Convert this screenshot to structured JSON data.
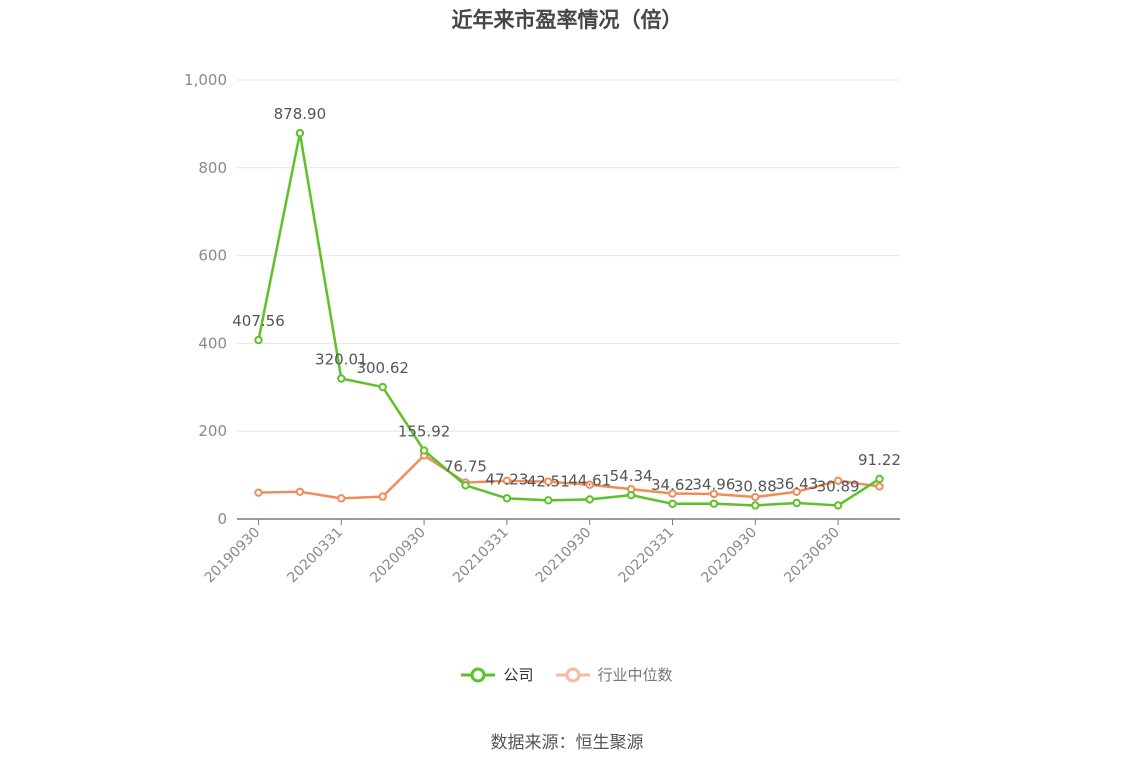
{
  "chart_data": {
    "type": "line",
    "title": "近年来市盈率情况（倍）",
    "xlabel": "",
    "ylabel": "",
    "ylim": [
      0,
      1000
    ],
    "y_ticks": [
      "0",
      "200",
      "400",
      "600",
      "800",
      "1,000"
    ],
    "y_tick_values": [
      0,
      200,
      400,
      600,
      800,
      1000
    ],
    "x": [
      "20190930",
      "20191231",
      "20200331",
      "20200630",
      "20200930",
      "20201231",
      "20210331",
      "20210630",
      "20210930",
      "20211231",
      "20220331",
      "20220630",
      "20220930",
      "20221231",
      "20230630",
      "20230930"
    ],
    "x_tick_labels": [
      "20190930",
      "20200331",
      "20200930",
      "20210331",
      "20210930",
      "20220331",
      "20220930",
      "20230630"
    ],
    "x_tick_indices": [
      0,
      2,
      4,
      6,
      8,
      10,
      12,
      14
    ],
    "grid": true,
    "legend_position": "bottom",
    "series": [
      {
        "name": "公司",
        "color": "#5cc12b",
        "values": [
          407.56,
          878.9,
          320.01,
          300.62,
          155.92,
          76.75,
          47.23,
          42.51,
          44.61,
          54.34,
          34.62,
          34.96,
          30.88,
          36.43,
          30.89,
          91.22
        ],
        "labels": [
          "407.56",
          "878.90",
          "320.01",
          "300.62",
          "155.92",
          "76.75",
          "47.23",
          "42.51",
          "44.61",
          "54.34",
          "34.62",
          "34.96",
          "30.88",
          "36.43",
          "30.89",
          "91.22"
        ]
      },
      {
        "name": "行业中位数",
        "color": "#f08c5a",
        "values": [
          60,
          62,
          47,
          51,
          145,
          83,
          87,
          85,
          78,
          68,
          58,
          57,
          50,
          62,
          87,
          74
        ]
      }
    ]
  },
  "legend": {
    "company": "公司",
    "industry": "行业中位数"
  },
  "source": "数据来源：恒生聚源"
}
